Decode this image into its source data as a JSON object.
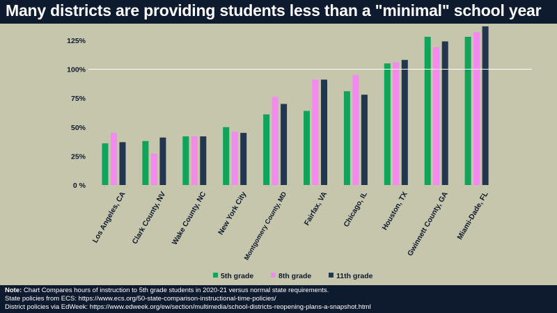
{
  "title": "Many districts are providing students less than a \"minimal\" school year",
  "chart_data": {
    "type": "bar",
    "categories": [
      "Los Angeles, CA",
      "Clark County, NV",
      "Wake County, NC",
      "New York City",
      "Montgomery County, MD",
      "Fairfax, VA",
      "Chicago, IL",
      "Houston, TX",
      "Gwinnett County, GA",
      "Miami-Dade, FL"
    ],
    "series": [
      {
        "name": "5th grade",
        "color": "#10a35a",
        "values": [
          36,
          38,
          42,
          50,
          61,
          64,
          81,
          105,
          128,
          128
        ]
      },
      {
        "name": "8th grade",
        "color": "#f48af0",
        "values": [
          45,
          27,
          42,
          46,
          76,
          91,
          95,
          106,
          119,
          132
        ]
      },
      {
        "name": "11th grade",
        "color": "#223650",
        "values": [
          37,
          41,
          42,
          45,
          70,
          91,
          78,
          108,
          124,
          137
        ]
      }
    ],
    "yticks": [
      "0 %",
      "25%",
      "50%",
      "75%",
      "100%",
      "125%"
    ],
    "ylim": [
      0,
      140
    ],
    "reference_line": 100,
    "legend_position": "bottom"
  },
  "note": {
    "label": "Note:",
    "line1": "Chart Compares hours of instruction to 5th grade students in 2020-21 versus normal state requirements.",
    "line2": "State policies from ECS: https://www.ecs.org/50-state-comparison-instructional-time-policies/",
    "line3": "District policies via EdWeek: https://www.edweek.org/ew/section/multimedia/school-districts-reopening-plans-a-snapshot.html"
  }
}
